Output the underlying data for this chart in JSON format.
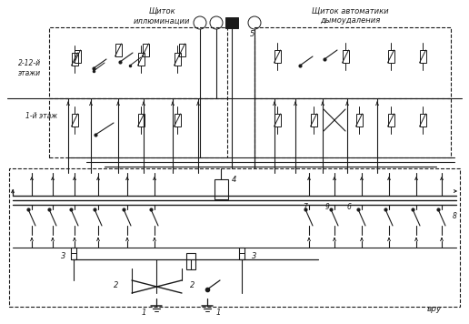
{
  "bg_color": "#ffffff",
  "line_color": "#1a1a1a",
  "text_label_illumination": "Щиток\nиллюминации",
  "text_label_automation": "Щиток автоматики\nдымоудаления",
  "text_floors_2_12": "2-12-й\nэтажи",
  "text_floor_1": "1-й этаж",
  "text_vru": "вру",
  "label_5": "5",
  "label_4": "4",
  "label_7": "7",
  "label_9": "9",
  "label_6": "6",
  "label_8": "8",
  "label_3": "3",
  "label_2": "2",
  "label_1": "1"
}
